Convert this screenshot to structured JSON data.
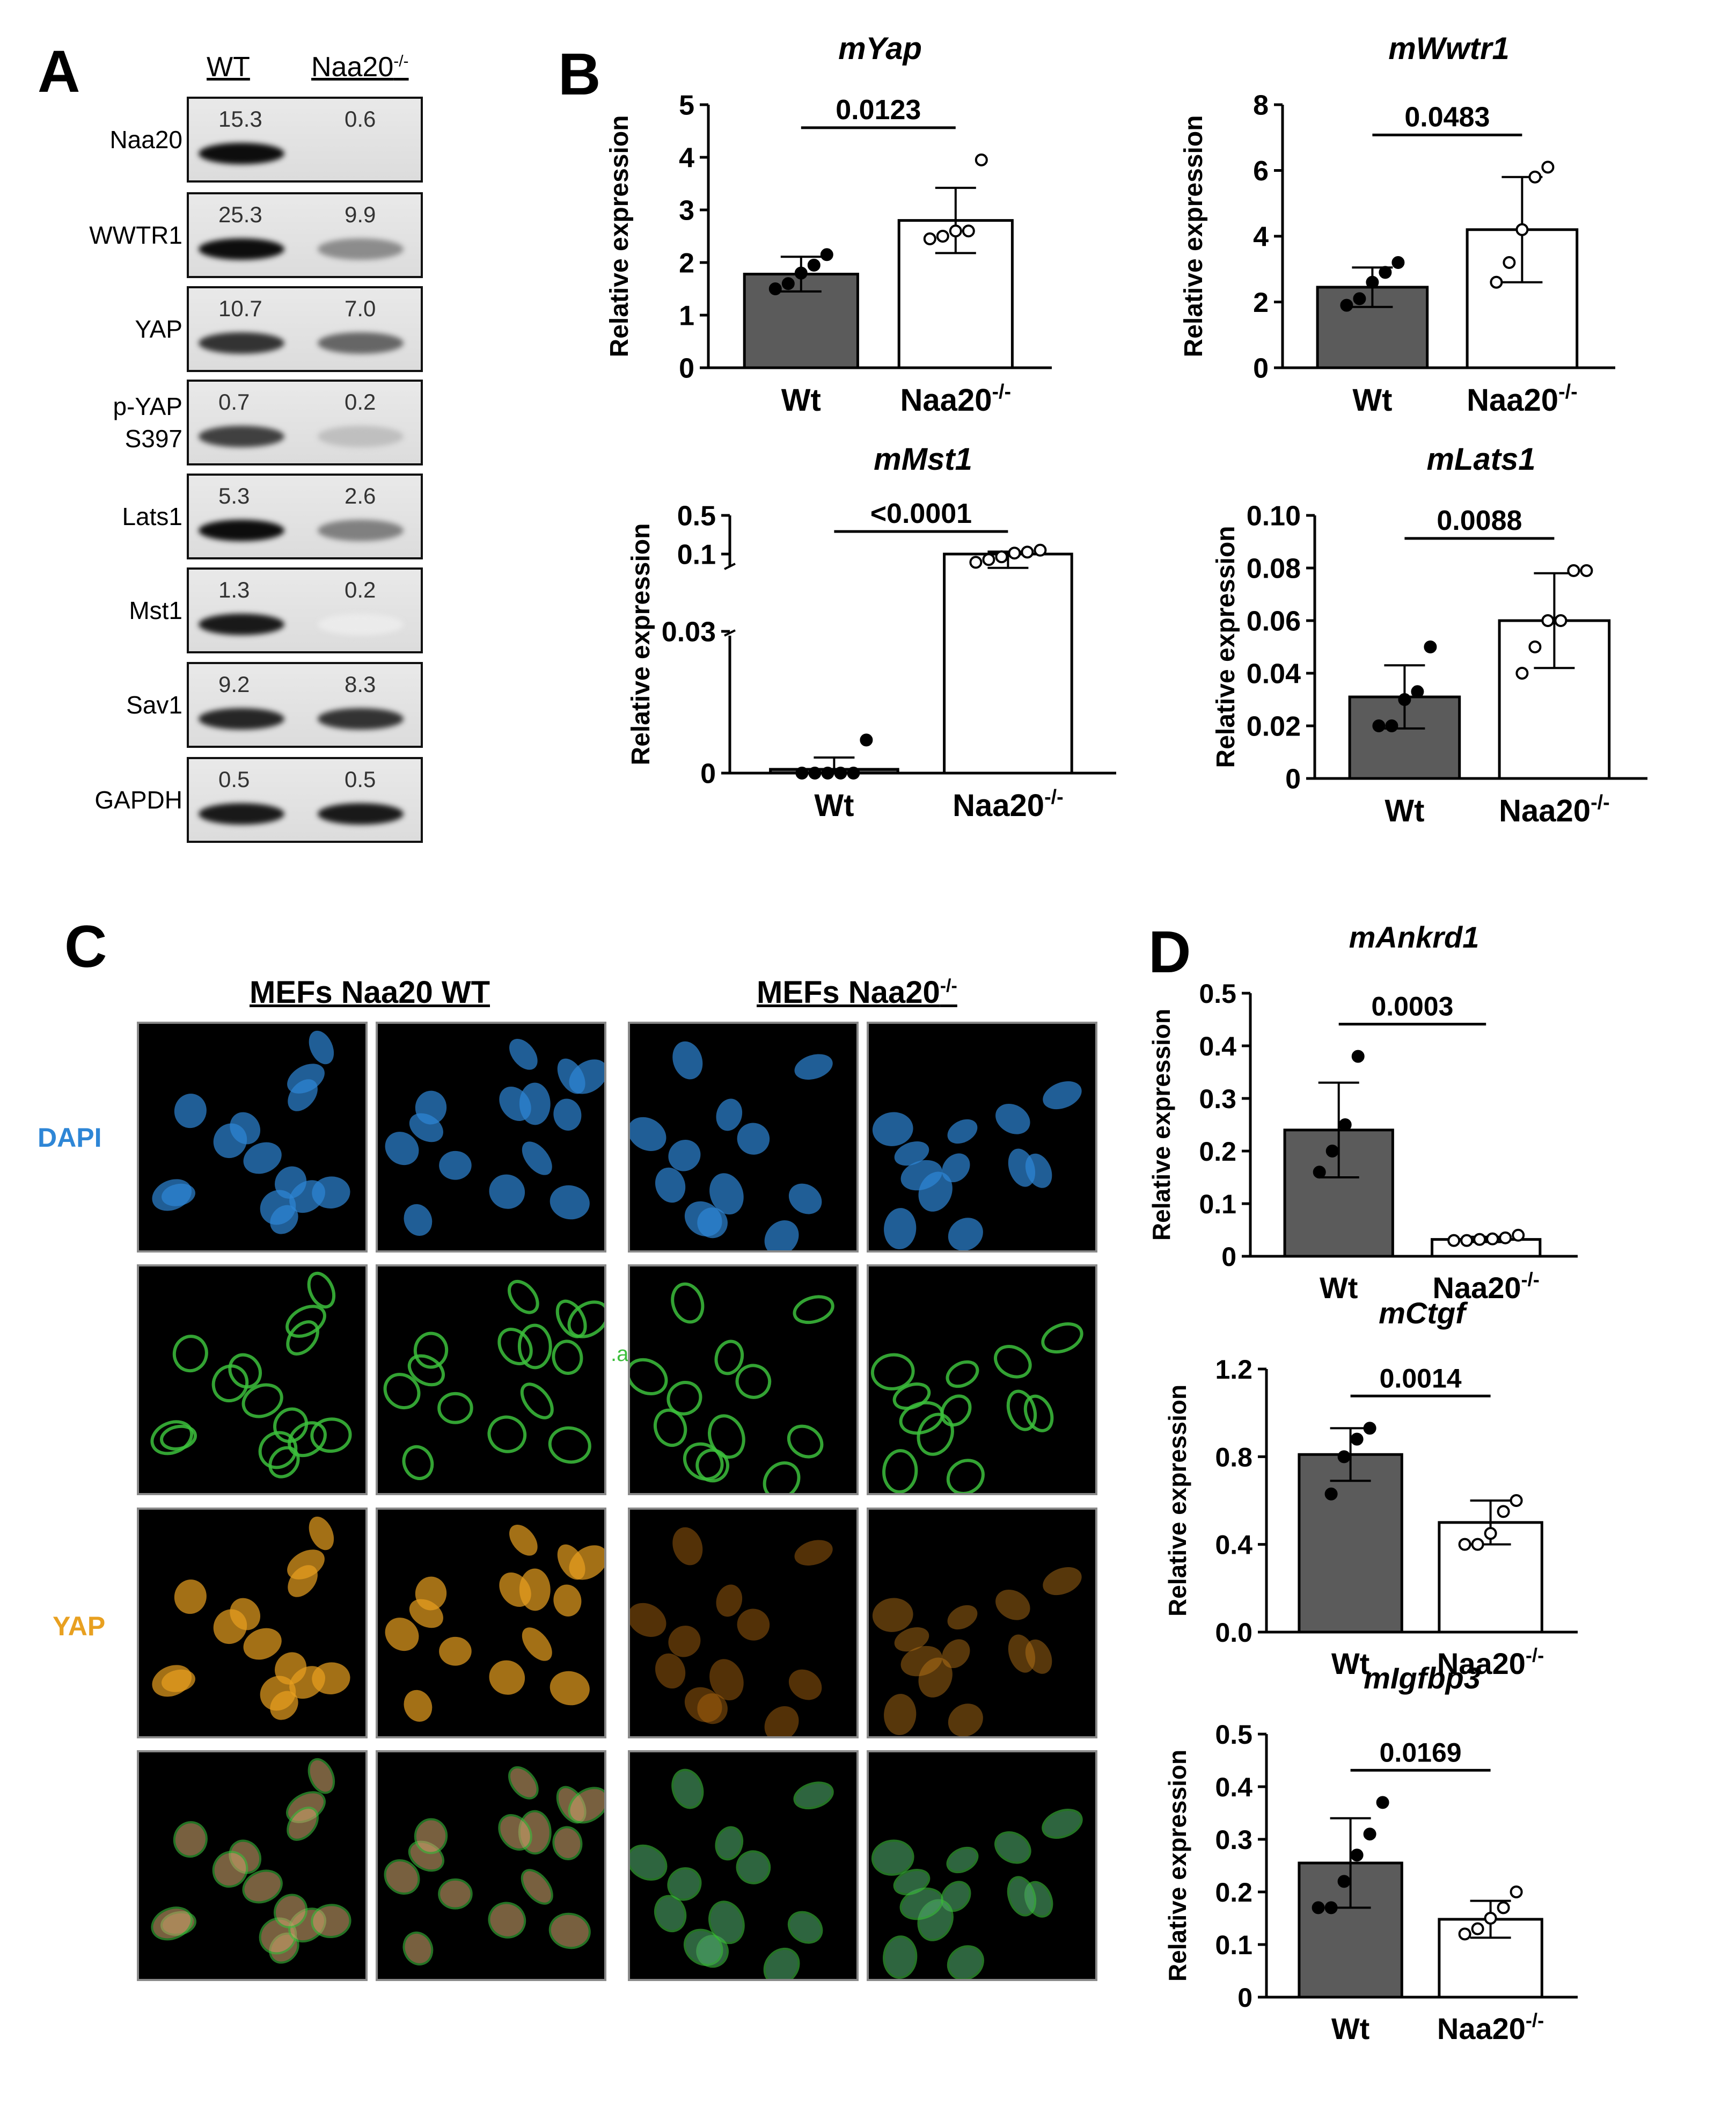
{
  "panels": {
    "A": "A",
    "B": "B",
    "C": "C",
    "D": "D"
  },
  "blot": {
    "lanes": [
      "WT",
      "Naa20-/-"
    ],
    "rows": [
      {
        "label": "Naa20",
        "values": [
          "15.3",
          "0.6"
        ],
        "wt_intensity": 0.95,
        "ko_intensity": 0.0
      },
      {
        "label": "WWTR1",
        "values": [
          "25.3",
          "9.9"
        ],
        "wt_intensity": 0.95,
        "ko_intensity": 0.45
      },
      {
        "label": "YAP",
        "values": [
          "10.7",
          "7.0"
        ],
        "wt_intensity": 0.8,
        "ko_intensity": 0.6
      },
      {
        "label": "p-YAP S397",
        "values": [
          "0.7",
          "0.2"
        ],
        "wt_intensity": 0.75,
        "ko_intensity": 0.25
      },
      {
        "label": "Lats1",
        "values": [
          "5.3",
          "2.6"
        ],
        "wt_intensity": 0.95,
        "ko_intensity": 0.5
      },
      {
        "label": "Mst1",
        "values": [
          "1.3",
          "0.2"
        ],
        "wt_intensity": 0.9,
        "ko_intensity": 0.08
      },
      {
        "label": "Sav1",
        "values": [
          "9.2",
          "8.3"
        ],
        "wt_intensity": 0.85,
        "ko_intensity": 0.8
      },
      {
        "label": "GAPDH",
        "values": [
          "0.5",
          "0.5"
        ],
        "wt_intensity": 0.9,
        "ko_intensity": 0.9
      }
    ]
  },
  "chart_data": [
    {
      "id": "yap",
      "type": "bar",
      "title": "mYap",
      "ylabel": "Relative expression",
      "categories": [
        "Wt",
        "Naa20-/-"
      ],
      "values": [
        1.78,
        2.8
      ],
      "errors": [
        0.33,
        0.62
      ],
      "points": [
        [
          1.5,
          1.6,
          1.8,
          1.95,
          2.15
        ],
        [
          2.45,
          2.5,
          2.6,
          2.6,
          3.95
        ]
      ],
      "ylim": [
        0,
        5
      ],
      "yticks": [
        "0",
        "1",
        "2",
        "3",
        "4",
        "5"
      ],
      "pvalue": "0.0123"
    },
    {
      "id": "wwtr1",
      "type": "bar",
      "title": "mWwtr1",
      "ylabel": "Relative expression",
      "categories": [
        "Wt",
        "Naa20-/-"
      ],
      "values": [
        2.45,
        4.2
      ],
      "errors": [
        0.6,
        1.6
      ],
      "points": [
        [
          1.9,
          2.1,
          2.6,
          2.9,
          3.2
        ],
        [
          2.6,
          3.2,
          4.2,
          5.8,
          6.1
        ]
      ],
      "ylim": [
        0,
        8
      ],
      "yticks": [
        "0",
        "2",
        "4",
        "6",
        "8"
      ],
      "pvalue": "0.0483"
    },
    {
      "id": "mst1",
      "type": "bar",
      "title": "mMst1",
      "ylabel": "Relative expression",
      "categories": [
        "Wt",
        "Naa20-/-"
      ],
      "values": [
        0.0008,
        0.1
      ],
      "errors": [
        0.0025,
        0.025
      ],
      "points": [
        [
          0,
          0,
          0,
          0,
          0,
          0.007
        ],
        [
          0.085,
          0.09,
          0.095,
          0.11,
          0.12,
          0.14
        ]
      ],
      "yticks": [
        "0",
        "0.03",
        "0.1",
        "0.5"
      ],
      "broken_axis": true,
      "pvalue": "<0.0001"
    },
    {
      "id": "lats1",
      "type": "bar",
      "title": "mLats1",
      "ylabel": "Relative expression",
      "categories": [
        "Wt",
        "Naa20-/-"
      ],
      "values": [
        0.031,
        0.06
      ],
      "errors": [
        0.012,
        0.018
      ],
      "points": [
        [
          0.02,
          0.02,
          0.03,
          0.033,
          0.05
        ],
        [
          0.04,
          0.05,
          0.06,
          0.06,
          0.079,
          0.079
        ]
      ],
      "ylim": [
        0,
        0.1
      ],
      "yticks": [
        "0",
        "0.02",
        "0.04",
        "0.06",
        "0.08",
        "0.10"
      ],
      "pvalue": "0.0088"
    },
    {
      "id": "ankrd1",
      "type": "bar",
      "title": "mAnkrd1",
      "ylabel": "Relative expression",
      "categories": [
        "Wt",
        "Naa20-/-"
      ],
      "values": [
        0.24,
        0.032
      ],
      "errors": [
        0.09,
        0.005
      ],
      "points": [
        [
          0.16,
          0.2,
          0.25,
          0.38
        ],
        [
          0.03,
          0.03,
          0.032,
          0.033,
          0.035,
          0.04
        ]
      ],
      "ylim": [
        0,
        0.5
      ],
      "yticks": [
        "0",
        "0.1",
        "0.2",
        "0.3",
        "0.4",
        "0.5"
      ],
      "pvalue": "0.0003"
    },
    {
      "id": "ctgf",
      "type": "bar",
      "title": "mCtgf",
      "ylabel": "Relative expression",
      "categories": [
        "Wt",
        "Naa20-/-"
      ],
      "values": [
        0.81,
        0.5
      ],
      "errors": [
        0.12,
        0.1
      ],
      "points": [
        [
          0.63,
          0.8,
          0.88,
          0.93
        ],
        [
          0.4,
          0.4,
          0.45,
          0.55,
          0.6
        ]
      ],
      "ylim": [
        0,
        1.2
      ],
      "yticks": [
        "0.0",
        "0.4",
        "0.8",
        "1.2"
      ],
      "pvalue": "0.0014"
    },
    {
      "id": "igfbp3",
      "type": "bar",
      "title": "mIgfbp3",
      "ylabel": "Relative expression",
      "categories": [
        "Wt",
        "Naa20-/-"
      ],
      "values": [
        0.255,
        0.148
      ],
      "errors": [
        0.085,
        0.035
      ],
      "points": [
        [
          0.17,
          0.17,
          0.22,
          0.27,
          0.31,
          0.37
        ],
        [
          0.12,
          0.13,
          0.15,
          0.17,
          0.2
        ]
      ],
      "ylim": [
        0,
        0.5
      ],
      "yticks": [
        "0",
        "0.1",
        "0.2",
        "0.3",
        "0.4",
        "0.5"
      ],
      "pvalue": "0.0169"
    }
  ],
  "micro": {
    "headers": [
      "MEFs Naa20 WT",
      "MEFs Naa20-/-"
    ],
    "rows": [
      "DAPI",
      "",
      "YAP",
      ""
    ],
    "stray_text": ".a",
    "colors": {
      "dapi": "#2e86d6",
      "green": "#3cbf3c",
      "yap": "#e8a020",
      "merge": "#c9a06a"
    }
  },
  "colors": {
    "wt_bar": "#5b5b5b",
    "ko_bar": "#ffffff"
  }
}
